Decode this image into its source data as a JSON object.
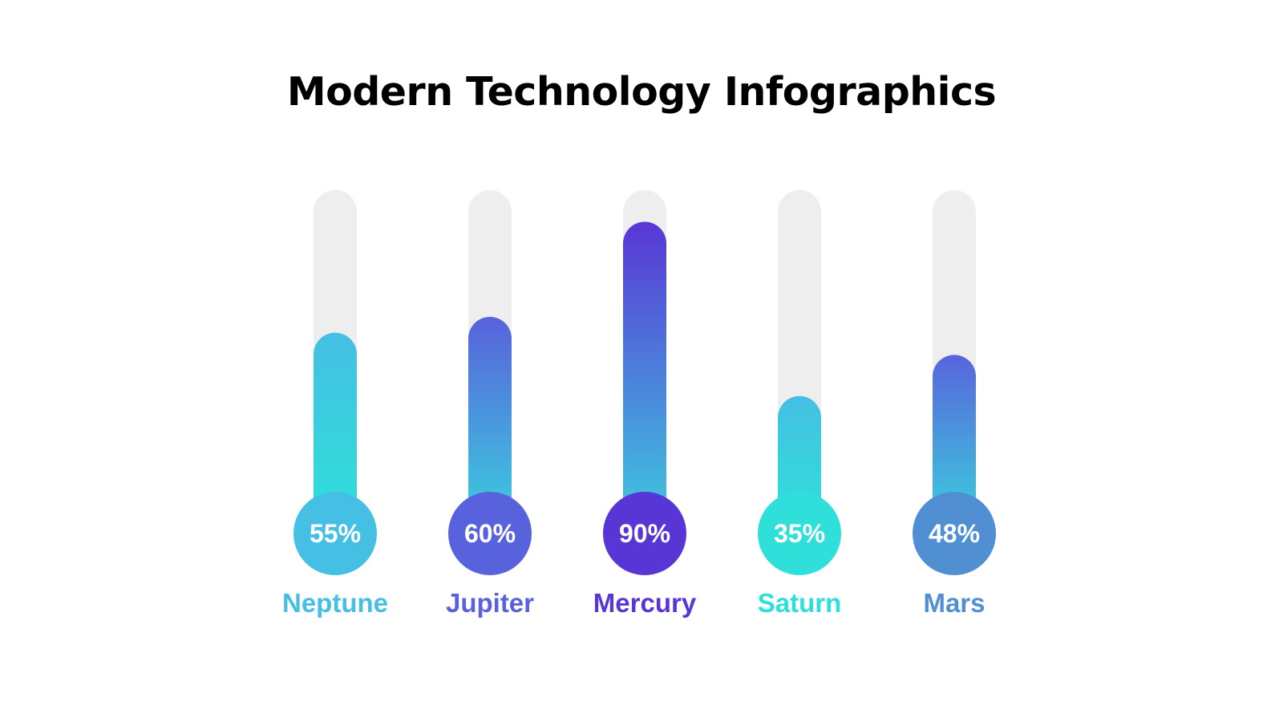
{
  "title": "Modern Technology Infographics",
  "chart_data": {
    "type": "bar",
    "orientation": "vertical",
    "title": "Modern Technology Infographics",
    "ylim": [
      0,
      100
    ],
    "categories": [
      "Neptune",
      "Jupiter",
      "Mercury",
      "Saturn",
      "Mars"
    ],
    "values": [
      55,
      60,
      90,
      35,
      48
    ],
    "labels": [
      "55%",
      "60%",
      "90%",
      "35%",
      "48%"
    ],
    "grid": false,
    "legend": "none",
    "colors": {
      "track": "#eeeeee",
      "Neptune": {
        "gradient_top": "#45bfe4",
        "gradient_bottom": "#2ee0d9",
        "circle": "#45bfe4",
        "text": "#45bfe4"
      },
      "Jupiter": {
        "gradient_top": "#5862dc",
        "gradient_bottom": "#3bcdde",
        "circle": "#5862dc",
        "text": "#5862dc"
      },
      "Mercury": {
        "gradient_top": "#5836d6",
        "gradient_bottom": "#3fc8df",
        "circle": "#5836d6",
        "text": "#5836d6"
      },
      "Saturn": {
        "gradient_top": "#45bfe4",
        "gradient_bottom": "#2ee0d9",
        "circle": "#2ee0d9",
        "text": "#2ee0d9"
      },
      "Mars": {
        "gradient_top": "#5865dc",
        "gradient_bottom": "#3bcdde",
        "circle": "#4f8fd2",
        "text": "#4f8fd2"
      }
    }
  }
}
